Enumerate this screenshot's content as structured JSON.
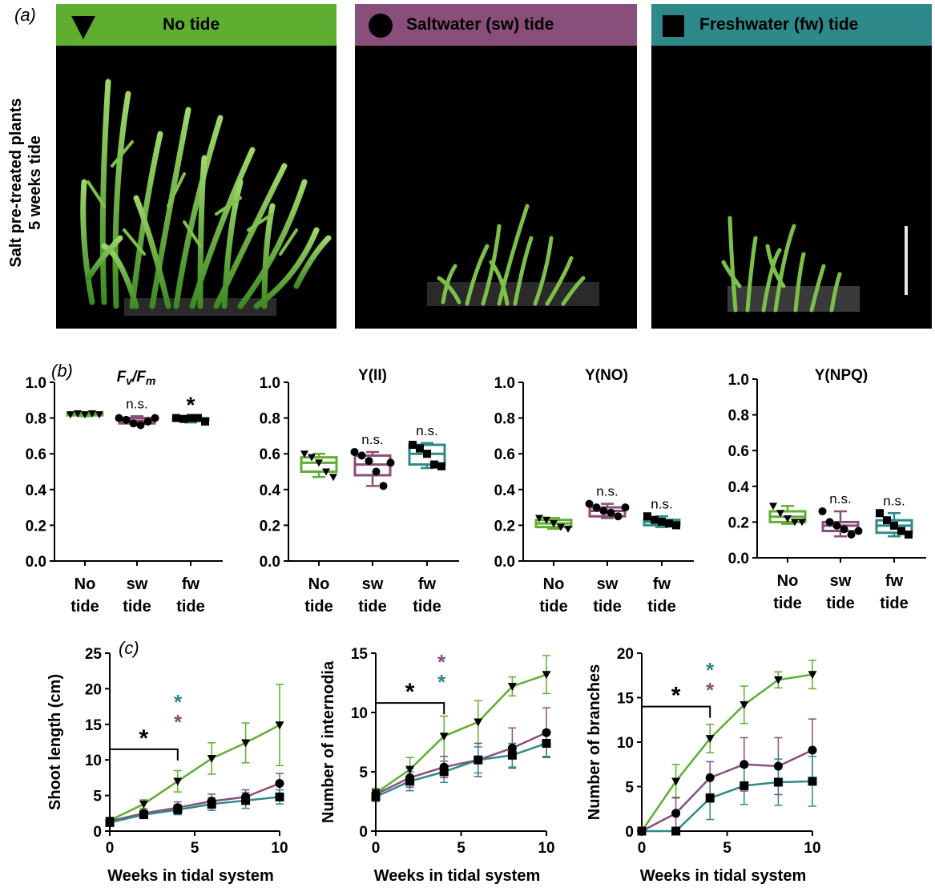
{
  "figure": {
    "panel_a_label": "(a)",
    "panel_b_label": "(b)",
    "panel_c_label": "(c)",
    "side_label_line1": "Salt pre-treated plants",
    "side_label_line2": "5 weeks tide"
  },
  "colors": {
    "no_tide": "#5fae31",
    "sw_tide": "#8a4e7a",
    "fw_tide": "#2e8a8a",
    "black": "#000000"
  },
  "headers": [
    {
      "label": "No tide",
      "symbol": "triangle-down-icon",
      "color": "#5fae31"
    },
    {
      "label": "Saltwater (sw) tide",
      "symbol": "circle-icon",
      "color": "#8a4e7a"
    },
    {
      "label": "Freshwater (fw) tide",
      "symbol": "square-icon",
      "color": "#2e8a8a"
    }
  ],
  "chart_data": [
    {
      "type": "box",
      "title": "Fv/Fm",
      "title_main": "F",
      "title_sub1": "v",
      "title_slash": "/F",
      "title_sub2": "m",
      "categories": [
        [
          "No",
          "tide"
        ],
        [
          "sw",
          "tide"
        ],
        [
          "fw",
          "tide"
        ]
      ],
      "ylim": [
        0,
        1.0
      ],
      "yticks": [
        "0.0",
        "0.2",
        "0.4",
        "0.6",
        "0.8",
        "1.0"
      ],
      "boxes": [
        {
          "q1": 0.815,
          "median": 0.82,
          "q3": 0.825,
          "min": 0.81,
          "max": 0.83,
          "points": [
            0.82,
            0.825,
            0.82,
            0.825,
            0.82
          ],
          "annot": ""
        },
        {
          "q1": 0.77,
          "median": 0.785,
          "q3": 0.8,
          "min": 0.76,
          "max": 0.81,
          "points": [
            0.8,
            0.79,
            0.77,
            0.76,
            0.78,
            0.8
          ],
          "annot": "n.s."
        },
        {
          "q1": 0.785,
          "median": 0.795,
          "q3": 0.8,
          "min": 0.775,
          "max": 0.805,
          "points": [
            0.8,
            0.795,
            0.8,
            0.8,
            0.78
          ],
          "annot": "*"
        }
      ]
    },
    {
      "type": "box",
      "title": "Y(II)",
      "categories": [
        [
          "No",
          "tide"
        ],
        [
          "sw",
          "tide"
        ],
        [
          "fw",
          "tide"
        ]
      ],
      "ylim": [
        0,
        1.0
      ],
      "yticks": [
        "0.0",
        "0.2",
        "0.4",
        "0.6",
        "0.8",
        "1.0"
      ],
      "boxes": [
        {
          "q1": 0.5,
          "median": 0.55,
          "q3": 0.58,
          "min": 0.47,
          "max": 0.6,
          "points": [
            0.6,
            0.58,
            0.55,
            0.5,
            0.47
          ],
          "annot": ""
        },
        {
          "q1": 0.48,
          "median": 0.54,
          "q3": 0.59,
          "min": 0.42,
          "max": 0.61,
          "points": [
            0.61,
            0.59,
            0.56,
            0.5,
            0.42,
            0.55
          ],
          "annot": "n.s."
        },
        {
          "q1": 0.54,
          "median": 0.6,
          "q3": 0.65,
          "min": 0.52,
          "max": 0.66,
          "points": [
            0.65,
            0.63,
            0.6,
            0.54,
            0.53
          ],
          "annot": "n.s."
        }
      ]
    },
    {
      "type": "box",
      "title": "Y(NO)",
      "categories": [
        [
          "No",
          "tide"
        ],
        [
          "sw",
          "tide"
        ],
        [
          "fw",
          "tide"
        ]
      ],
      "ylim": [
        0,
        1.0
      ],
      "yticks": [
        "0.0",
        "0.2",
        "0.4",
        "0.6",
        "0.8",
        "1.0"
      ],
      "boxes": [
        {
          "q1": 0.19,
          "median": 0.21,
          "q3": 0.23,
          "min": 0.18,
          "max": 0.24,
          "points": [
            0.24,
            0.23,
            0.21,
            0.19,
            0.18
          ],
          "annot": ""
        },
        {
          "q1": 0.25,
          "median": 0.28,
          "q3": 0.3,
          "min": 0.24,
          "max": 0.32,
          "points": [
            0.32,
            0.3,
            0.28,
            0.27,
            0.25,
            0.3
          ],
          "annot": "n.s."
        },
        {
          "q1": 0.2,
          "median": 0.22,
          "q3": 0.23,
          "min": 0.19,
          "max": 0.25,
          "points": [
            0.25,
            0.23,
            0.22,
            0.21,
            0.2
          ],
          "annot": "n.s."
        }
      ]
    },
    {
      "type": "box",
      "title": "Y(NPQ)",
      "categories": [
        [
          "No",
          "tide"
        ],
        [
          "sw",
          "tide"
        ],
        [
          "fw",
          "tide"
        ]
      ],
      "ylim": [
        0,
        1.0
      ],
      "yticks": [
        "0.0",
        "0.2",
        "0.4",
        "0.6",
        "0.8",
        "1.0"
      ],
      "boxes": [
        {
          "q1": 0.2,
          "median": 0.23,
          "q3": 0.26,
          "min": 0.19,
          "max": 0.29,
          "points": [
            0.29,
            0.25,
            0.22,
            0.2,
            0.2
          ],
          "annot": ""
        },
        {
          "q1": 0.15,
          "median": 0.18,
          "q3": 0.2,
          "min": 0.12,
          "max": 0.26,
          "points": [
            0.26,
            0.2,
            0.18,
            0.16,
            0.13,
            0.15
          ],
          "annot": "n.s."
        },
        {
          "q1": 0.14,
          "median": 0.18,
          "q3": 0.21,
          "min": 0.12,
          "max": 0.25,
          "points": [
            0.25,
            0.21,
            0.18,
            0.15,
            0.13
          ],
          "annot": "n.s."
        }
      ]
    },
    {
      "type": "line",
      "ylabel": "Shoot length (cm)",
      "xlabel": "Weeks in tidal system",
      "xlim": [
        0,
        10
      ],
      "ylim": [
        0,
        25
      ],
      "xticks": [
        0,
        5,
        10
      ],
      "yticks": [
        0,
        5,
        10,
        15,
        20,
        25
      ],
      "x": [
        0,
        2,
        4,
        6,
        8,
        10
      ],
      "series": [
        {
          "values": [
            1.5,
            3.8,
            7.0,
            10.2,
            12.4,
            14.9
          ],
          "err": [
            0.3,
            0.6,
            1.5,
            2.2,
            2.8,
            5.7
          ],
          "color": "#5fae31",
          "marker": "triangle"
        },
        {
          "values": [
            1.4,
            2.5,
            3.3,
            4.2,
            4.8,
            6.7
          ],
          "err": [
            0.3,
            0.4,
            0.8,
            1.0,
            1.0,
            1.4
          ],
          "color": "#8a4e7a",
          "marker": "circle"
        },
        {
          "values": [
            1.2,
            2.3,
            3.0,
            3.8,
            4.3,
            4.8
          ],
          "err": [
            0.3,
            0.4,
            0.7,
            0.9,
            1.1,
            1.0
          ],
          "color": "#2e8a8a",
          "marker": "square"
        }
      ],
      "bracket": {
        "x0": 0,
        "x1": 4,
        "y": 11.5,
        "label": "*"
      },
      "stars": [
        {
          "label": "*",
          "color": "#2e8a8a"
        },
        {
          "label": "*",
          "color": "#8a4e7a"
        }
      ]
    },
    {
      "type": "line",
      "ylabel": "Number of internodia",
      "xlabel": "Weeks in tidal system",
      "xlim": [
        0,
        10
      ],
      "ylim": [
        0,
        15
      ],
      "xticks": [
        0,
        5,
        10
      ],
      "yticks": [
        0,
        5,
        10,
        15
      ],
      "x": [
        0,
        2,
        4,
        6,
        8,
        10
      ],
      "series": [
        {
          "values": [
            3.2,
            5.2,
            8.0,
            9.2,
            12.2,
            13.2
          ],
          "err": [
            0.4,
            1.0,
            1.7,
            1.8,
            0.8,
            1.6
          ],
          "color": "#5fae31",
          "marker": "triangle"
        },
        {
          "values": [
            3.1,
            4.5,
            5.4,
            6.0,
            7.0,
            8.3
          ],
          "err": [
            0.4,
            0.8,
            0.9,
            1.4,
            1.7,
            2.1
          ],
          "color": "#8a4e7a",
          "marker": "circle"
        },
        {
          "values": [
            2.9,
            4.2,
            5.0,
            6.0,
            6.4,
            7.4
          ],
          "err": [
            0.4,
            0.8,
            0.9,
            1.1,
            1.0,
            1.1
          ],
          "color": "#2e8a8a",
          "marker": "square"
        }
      ],
      "bracket": {
        "x0": 0,
        "x1": 4,
        "y": 10.8,
        "label": "*"
      },
      "stars": [
        {
          "label": "*",
          "color": "#8a4e7a"
        },
        {
          "label": "*",
          "color": "#2e8a8a"
        }
      ]
    },
    {
      "type": "line",
      "ylabel": "Number of branches",
      "xlabel": "Weeks in tidal system",
      "xlim": [
        0,
        10
      ],
      "ylim": [
        0,
        20
      ],
      "xticks": [
        0,
        5,
        10
      ],
      "yticks": [
        0,
        5,
        10,
        15,
        20
      ],
      "x": [
        0,
        2,
        4,
        6,
        8,
        10
      ],
      "series": [
        {
          "values": [
            0,
            5.6,
            10.4,
            14.2,
            17.0,
            17.6
          ],
          "err": [
            0,
            1.9,
            1.6,
            2.1,
            0.9,
            1.6
          ],
          "color": "#5fae31",
          "marker": "triangle"
        },
        {
          "values": [
            0,
            2.0,
            6.0,
            7.5,
            7.3,
            9.1
          ],
          "err": [
            0,
            1.8,
            1.8,
            3.0,
            3.2,
            3.5
          ],
          "color": "#8a4e7a",
          "marker": "circle"
        },
        {
          "values": [
            0,
            0,
            3.7,
            5.1,
            5.5,
            5.6
          ],
          "err": [
            0,
            0,
            2.4,
            2.1,
            2.6,
            2.8
          ],
          "color": "#2e8a8a",
          "marker": "square"
        }
      ],
      "bracket": {
        "x0": 0,
        "x1": 4,
        "y": 14.0,
        "label": "*"
      },
      "stars": [
        {
          "label": "*",
          "color": "#2e8a8a"
        },
        {
          "label": "*",
          "color": "#8a4e7a"
        }
      ]
    }
  ]
}
